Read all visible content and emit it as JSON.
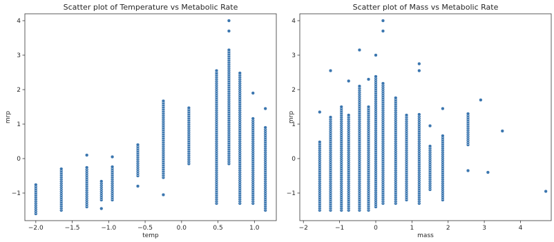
{
  "chart_data": [
    {
      "type": "scatter",
      "title": "Scatter plot of Temperature vs Metabolic Rate",
      "xlabel": "temp",
      "ylabel": "mrp",
      "xlim": [
        -2.15,
        1.3
      ],
      "ylim": [
        -1.8,
        4.2
      ],
      "xticks": [
        "−2.0",
        "−1.5",
        "−1.0",
        "−0.5",
        "0.0",
        "0.5",
        "1.0"
      ],
      "xtick_values": [
        -2.0,
        -1.5,
        -1.0,
        -0.5,
        0.0,
        0.5,
        1.0
      ],
      "yticks": [
        "−1",
        "0",
        "1",
        "2",
        "3",
        "4"
      ],
      "ytick_values": [
        -1,
        0,
        1,
        2,
        3,
        4
      ],
      "marker_color": "#3b76af",
      "columns": [
        {
          "x": -2.0,
          "ymin": -1.6,
          "ymax": -0.75,
          "extra": []
        },
        {
          "x": -1.65,
          "ymin": -1.5,
          "ymax": -0.3,
          "extra": []
        },
        {
          "x": -1.3,
          "ymin": -1.4,
          "ymax": -0.25,
          "extra": [
            0.1
          ]
        },
        {
          "x": -1.1,
          "ymin": -1.2,
          "ymax": -0.65,
          "extra": [
            -1.45
          ]
        },
        {
          "x": -0.95,
          "ymin": -1.2,
          "ymax": -0.2,
          "extra": [
            0.05
          ]
        },
        {
          "x": -0.6,
          "ymin": -0.5,
          "ymax": 0.45,
          "extra": [
            -0.8
          ]
        },
        {
          "x": -0.25,
          "ymin": -0.55,
          "ymax": 1.7,
          "extra": [
            -1.05
          ]
        },
        {
          "x": 0.1,
          "ymin": -0.15,
          "ymax": 1.5,
          "extra": []
        },
        {
          "x": 0.48,
          "ymin": -1.3,
          "ymax": 2.5,
          "extra": [
            2.55
          ]
        },
        {
          "x": 0.65,
          "ymin": -0.15,
          "ymax": 3.2,
          "extra": [
            3.7,
            4.0
          ]
        },
        {
          "x": 0.8,
          "ymin": -1.3,
          "ymax": 2.5,
          "extra": []
        },
        {
          "x": 0.98,
          "ymin": -1.3,
          "ymax": 1.2,
          "extra": [
            1.9
          ]
        },
        {
          "x": 1.15,
          "ymin": -1.5,
          "ymax": 0.9,
          "extra": [
            1.45
          ]
        }
      ]
    },
    {
      "type": "scatter",
      "title": "Scatter plot of Mass vs Metabolic Rate",
      "xlabel": "mass",
      "ylabel": "mrp",
      "xlim": [
        -2.1,
        4.85
      ],
      "ylim": [
        -1.8,
        4.2
      ],
      "xticks": [
        "−2",
        "−1",
        "0",
        "1",
        "2",
        "3",
        "4"
      ],
      "xtick_values": [
        -2,
        -1,
        0,
        1,
        2,
        3,
        4
      ],
      "yticks": [
        "−1",
        "0",
        "1",
        "2",
        "3",
        "4"
      ],
      "ytick_values": [
        -1,
        0,
        1,
        2,
        3,
        4
      ],
      "marker_color": "#3b76af",
      "columns": [
        {
          "x": -1.55,
          "ymin": -1.5,
          "ymax": 0.5,
          "extra": [
            1.35
          ]
        },
        {
          "x": -1.25,
          "ymin": -1.5,
          "ymax": 1.2,
          "extra": [
            2.55
          ]
        },
        {
          "x": -0.95,
          "ymin": -1.5,
          "ymax": 1.5,
          "extra": []
        },
        {
          "x": -0.75,
          "ymin": -1.5,
          "ymax": 1.3,
          "extra": [
            2.25
          ]
        },
        {
          "x": -0.45,
          "ymin": -1.5,
          "ymax": 2.1,
          "extra": [
            3.15
          ]
        },
        {
          "x": -0.2,
          "ymin": -1.5,
          "ymax": 1.5,
          "extra": [
            2.3
          ]
        },
        {
          "x": 0.0,
          "ymin": -1.4,
          "ymax": 2.4,
          "extra": [
            3.0
          ]
        },
        {
          "x": 0.2,
          "ymin": -1.3,
          "ymax": 2.2,
          "extra": [
            3.7,
            4.0
          ]
        },
        {
          "x": 0.55,
          "ymin": -1.3,
          "ymax": 1.8,
          "extra": []
        },
        {
          "x": 0.85,
          "ymin": -1.2,
          "ymax": 1.3,
          "extra": []
        },
        {
          "x": 1.2,
          "ymin": -1.3,
          "ymax": 1.3,
          "extra": [
            2.55,
            2.75
          ]
        },
        {
          "x": 1.5,
          "ymin": -0.9,
          "ymax": 0.4,
          "extra": [
            0.95
          ]
        },
        {
          "x": 1.85,
          "ymin": -1.2,
          "ymax": 0.7,
          "extra": [
            1.45
          ]
        },
        {
          "x": 2.55,
          "ymin": 0.4,
          "ymax": 1.3,
          "extra": [
            -0.35
          ]
        },
        {
          "x": 2.9,
          "ymin": 1.7,
          "ymax": 1.7,
          "extra": []
        },
        {
          "x": 3.1,
          "ymin": -0.4,
          "ymax": -0.4,
          "extra": []
        },
        {
          "x": 3.5,
          "ymin": 0.8,
          "ymax": 0.8,
          "extra": []
        },
        {
          "x": 4.7,
          "ymin": -0.95,
          "ymax": -0.95,
          "extra": []
        }
      ]
    }
  ]
}
